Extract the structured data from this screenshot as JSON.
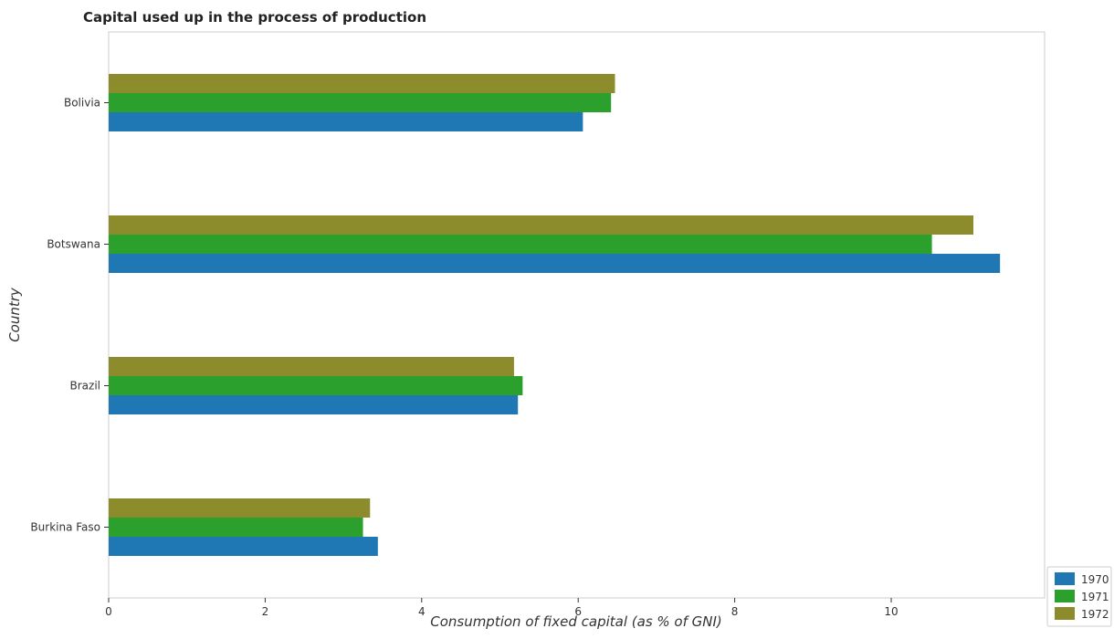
{
  "chart_data": {
    "type": "bar",
    "orientation": "horizontal",
    "title": "Capital used up in the process of production",
    "xlabel": "Consumption of fixed capital (as % of GNI)",
    "ylabel": "Country",
    "categories": [
      "Bolivia",
      "Botswana",
      "Brazil",
      "Burkina Faso"
    ],
    "series": [
      {
        "name": "1970",
        "color": "#1f77b4",
        "values": [
          6.06,
          11.39,
          5.23,
          3.44
        ]
      },
      {
        "name": "1971",
        "color": "#2ca02c",
        "values": [
          6.42,
          10.52,
          5.29,
          3.25
        ]
      },
      {
        "name": "1972",
        "color": "#8c8c2c",
        "values": [
          6.47,
          11.05,
          5.18,
          3.34
        ]
      }
    ],
    "xlim": [
      0,
      11.96
    ],
    "xticks": [
      0,
      2,
      4,
      6,
      8,
      10
    ],
    "grid": false,
    "legend_position": "bottom-right"
  }
}
